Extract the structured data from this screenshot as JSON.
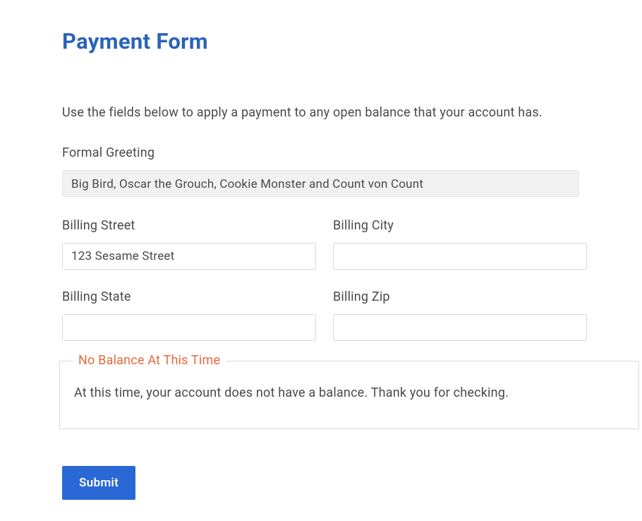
{
  "page": {
    "title": "Payment Form",
    "instruction": "Use the fields below to apply a payment to any open balance that your account has."
  },
  "form": {
    "formal_greeting": {
      "label": "Formal Greeting",
      "value": "Big Bird, Oscar the Grouch, Cookie Monster and Count von Count"
    },
    "billing_street": {
      "label": "Billing Street",
      "value": "123 Sesame Street"
    },
    "billing_city": {
      "label": "Billing City",
      "value": ""
    },
    "billing_state": {
      "label": "Billing State",
      "value": ""
    },
    "billing_zip": {
      "label": "Billing Zip",
      "value": ""
    },
    "balance_box": {
      "legend": "No Balance At This Time",
      "message": "At this time, your account does not have a balance. Thank you for checking."
    },
    "submit_label": "Submit"
  },
  "colors": {
    "title": "#2a64b8",
    "text": "#4a4a4a",
    "readonly_bg": "#f1f1f1",
    "border": "#d9d9d9",
    "legend": "#e56a3f",
    "button_bg": "#2a68d6",
    "button_text": "#ffffff",
    "page_bg": "#ffffff"
  }
}
